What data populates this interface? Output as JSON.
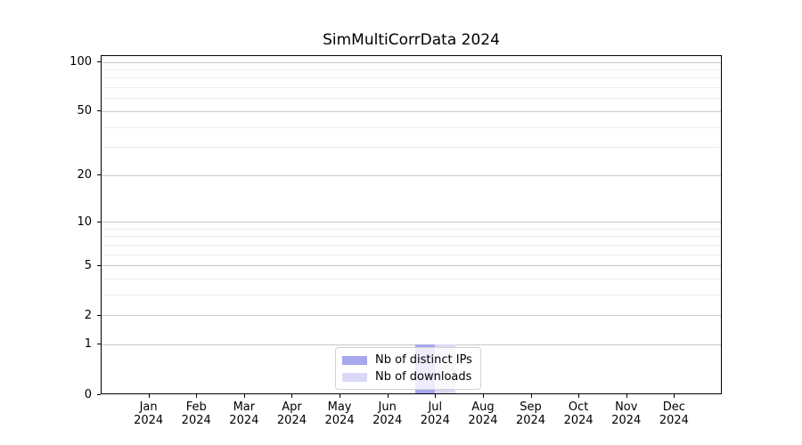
{
  "chart_data": {
    "type": "bar",
    "title": "SimMultiCorrData 2024",
    "categories": [
      "Jan 2024",
      "Feb 2024",
      "Mar 2024",
      "Apr 2024",
      "May 2024",
      "Jun 2024",
      "Jul 2024",
      "Aug 2024",
      "Sep 2024",
      "Oct 2024",
      "Nov 2024",
      "Dec 2024"
    ],
    "series": [
      {
        "name": "Nb of distinct IPs",
        "color": "#a7a7ee",
        "values": [
          0,
          0,
          0,
          0,
          0,
          0,
          1,
          0,
          0,
          0,
          0,
          0
        ]
      },
      {
        "name": "Nb of downloads",
        "color": "#dadaf6",
        "values": [
          0,
          0,
          0,
          0,
          0,
          0,
          1,
          0,
          0,
          0,
          0,
          0
        ]
      }
    ],
    "xlabel": "",
    "ylabel": "",
    "yscale": "log1p",
    "ylim": [
      0,
      110
    ],
    "y_ticks_major": [
      0,
      1,
      2,
      5,
      10,
      20,
      50,
      100
    ],
    "y_ticks_minor": [
      3,
      4,
      6,
      7,
      8,
      9,
      30,
      40,
      60,
      70,
      80,
      90
    ],
    "grid": true,
    "legend_position": "lower center"
  },
  "colors": {
    "grid_major": "#c9c9c9",
    "grid_minor": "#ececec",
    "spine": "#000000",
    "background": "#ffffff"
  }
}
